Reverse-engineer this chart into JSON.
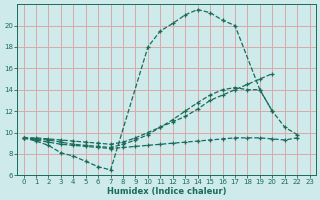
{
  "xlabel": "Humidex (Indice chaleur)",
  "bg_color": "#ceeaea",
  "grid_color": "#dba8a8",
  "line_color": "#1a6b5a",
  "xlim": [
    -0.5,
    23.5
  ],
  "ylim": [
    6,
    22
  ],
  "xticks": [
    0,
    1,
    2,
    3,
    4,
    5,
    6,
    7,
    8,
    9,
    10,
    11,
    12,
    13,
    14,
    15,
    16,
    17,
    18,
    19,
    20,
    21,
    22,
    23
  ],
  "yticks": [
    6,
    8,
    10,
    12,
    14,
    16,
    18,
    20
  ],
  "line_flat_x": [
    0,
    1,
    2,
    3,
    4,
    5,
    6,
    7,
    8,
    9,
    10,
    11,
    12,
    13,
    14,
    15,
    16,
    17,
    18,
    19,
    20,
    21,
    22
  ],
  "line_flat_y": [
    9.5,
    9.3,
    9.1,
    8.9,
    8.8,
    8.7,
    8.6,
    8.5,
    8.6,
    8.7,
    8.8,
    8.9,
    9.0,
    9.1,
    9.2,
    9.3,
    9.4,
    9.5,
    9.5,
    9.5,
    9.4,
    9.3,
    9.5
  ],
  "line_slow_x": [
    0,
    1,
    2,
    3,
    4,
    5,
    6,
    7,
    8,
    9,
    10,
    11,
    12,
    13,
    14,
    15,
    16,
    17,
    18,
    19,
    20
  ],
  "line_slow_y": [
    9.5,
    9.5,
    9.4,
    9.3,
    9.2,
    9.1,
    9.0,
    8.9,
    9.1,
    9.5,
    10.0,
    10.5,
    11.0,
    11.5,
    12.2,
    13.0,
    13.5,
    14.0,
    14.5,
    15.0,
    15.5
  ],
  "line_mid_x": [
    0,
    1,
    2,
    3,
    4,
    5,
    6,
    7,
    8,
    9,
    10,
    11,
    12,
    13,
    14,
    15,
    16,
    17,
    18,
    19,
    20
  ],
  "line_mid_y": [
    9.5,
    9.4,
    9.3,
    9.1,
    8.9,
    8.8,
    8.7,
    8.6,
    8.9,
    9.3,
    9.8,
    10.5,
    11.2,
    12.0,
    12.8,
    13.5,
    14.0,
    14.2,
    14.0,
    14.0,
    12.0
  ],
  "line_big_x": [
    0,
    1,
    2,
    3,
    4,
    5,
    6,
    7,
    10,
    11,
    12,
    13,
    14,
    15,
    16,
    17,
    19,
    20,
    21,
    22
  ],
  "line_big_y": [
    9.5,
    9.2,
    8.8,
    8.1,
    7.8,
    7.3,
    6.8,
    6.5,
    18.0,
    19.5,
    20.2,
    21.0,
    21.5,
    21.2,
    20.5,
    20.0,
    14.0,
    12.0,
    10.5,
    9.8
  ]
}
